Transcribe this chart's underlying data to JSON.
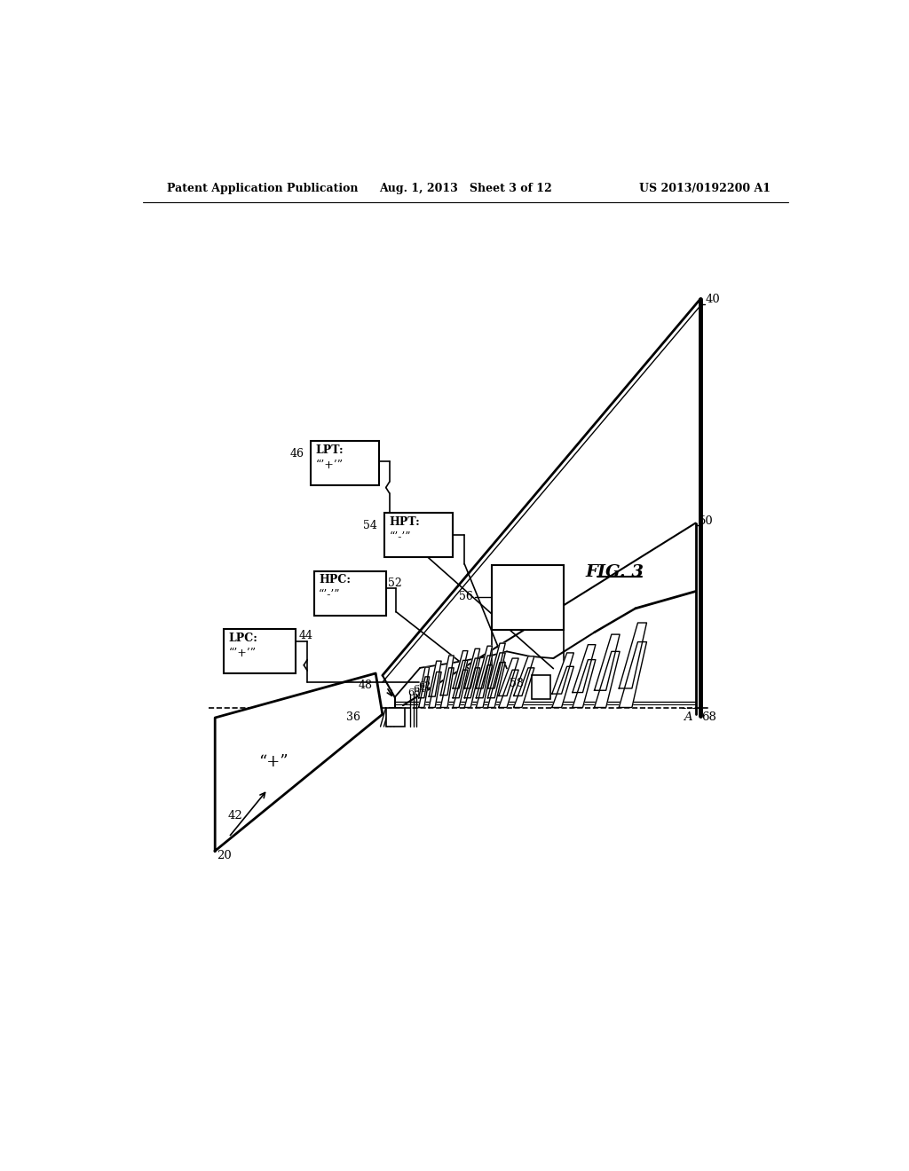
{
  "bg_color": "#ffffff",
  "header_left": "Patent Application Publication",
  "header_mid": "Aug. 1, 2013   Sheet 3 of 12",
  "header_right": "US 2013/0192200 A1",
  "fig_label": "FIG. 3",
  "lpc_line1": "LPC:",
  "lpc_line2": "“’+’”",
  "hpc_line1": "HPC:",
  "hpc_line2": "“’-’”",
  "hpt_line1": "HPT:",
  "hpt_line2": "“’-’”",
  "lpt_line1": "LPT:",
  "lpt_line2": "“’+’”",
  "fan_text": "“+”"
}
